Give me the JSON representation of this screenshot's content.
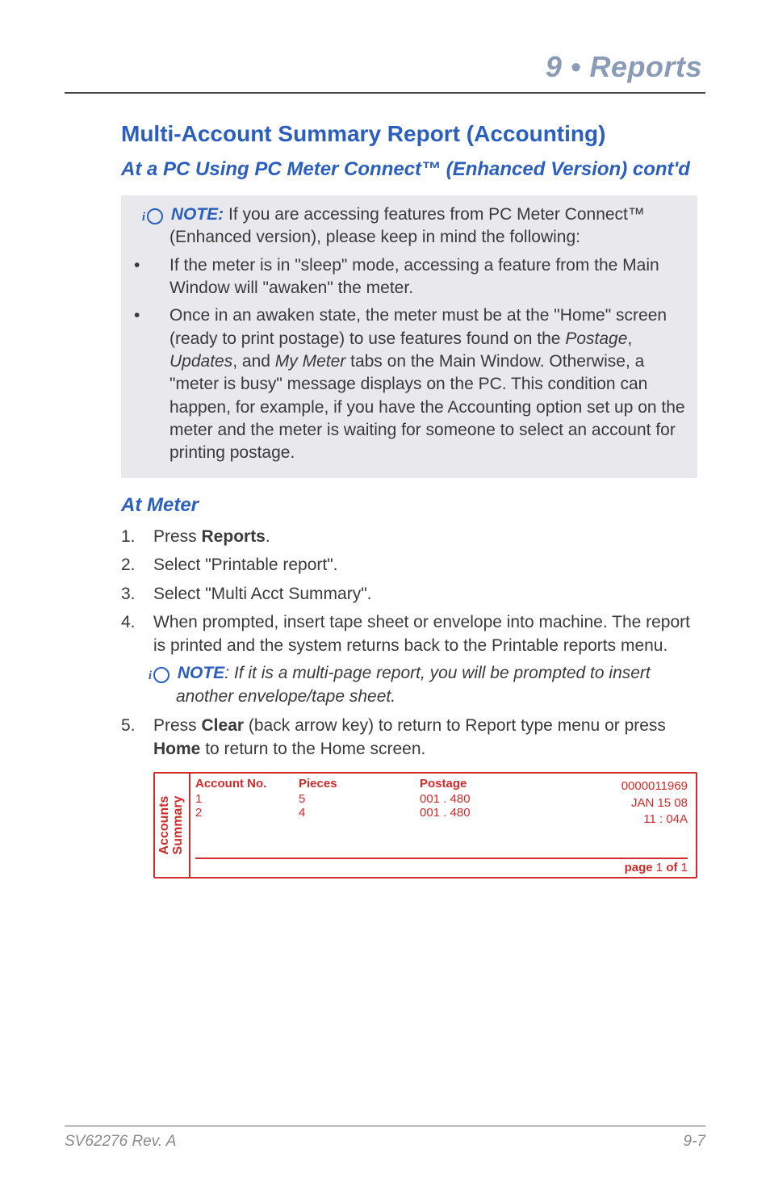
{
  "header": {
    "chapter": "9 • Reports"
  },
  "h1": "Multi-Account Summary Report (Accounting)",
  "h2": "At a PC Using PC Meter Connect™ (Enhanced Version) cont'd",
  "note": {
    "label": "NOTE:",
    "lead": " If you are accessing features from PC Meter Connect™ (Enhanced version), please keep in mind the following:",
    "bullets": [
      "If the meter is in \"sleep\" mode, accessing a feature from the Main Window will \"awaken\" the meter.",
      "Once in an awaken state, the meter must be at the \"Home\" screen (ready to print postage) to use features found on the Postage, Updates, and My Meter tabs on the Main Window. Otherwise, a \"meter is busy\" message displays on the PC. This condition can happen, for example, if you have the Accounting option set up on the meter and the meter is waiting for someone to select an account for printing postage."
    ],
    "b2_prefix": "Once in an awaken state, the meter must be at the \"Home\" screen (ready to print postage) to use features found on the ",
    "b2_i1": "Postage",
    "b2_m1": ", ",
    "b2_i2": "Updates",
    "b2_m2": ", and ",
    "b2_i3": "My Meter",
    "b2_suffix": " tabs on the Main Window. Otherwise, a \"meter is busy\" message displays on the PC. This condition can happen, for example, if you have the Accounting option set up on the meter and the meter is waiting for someone to select an account for printing postage."
  },
  "h2b": "At Meter",
  "steps": {
    "s1a": "Press ",
    "s1b": "Reports",
    "s1c": ".",
    "s2": "Select \"Printable report\".",
    "s3": "Select \"Multi Acct Summary\".",
    "s4": "When prompted, insert tape sheet or envelope into machine. The report is printed and the system returns back to the Printable reports menu.",
    "s4note_label": "NOTE",
    "s4note_text": ": If it is a multi-page report, you will be prompted to insert another envelope/tape sheet.",
    "s5a": "Press ",
    "s5b": "Clear",
    "s5c": " (back arrow key) to return to Report type menu or press ",
    "s5d": "Home",
    "s5e": " to return to the Home screen."
  },
  "report": {
    "side_l1": "Accounts",
    "side_l2": "Summary",
    "headers": {
      "acc": "Account No.",
      "pcs": "Pieces",
      "post": "Postage"
    },
    "rows": [
      {
        "acc": "1",
        "pcs": "5",
        "post": "001 . 480"
      },
      {
        "acc": "2",
        "pcs": "4",
        "post": "001 . 480"
      }
    ],
    "right": {
      "serial": "0000011969",
      "date": "JAN  15  08",
      "time": "11 : 04A"
    },
    "pager": {
      "a": "page",
      "b": "1",
      "c": "of",
      "d": "1"
    },
    "colors": {
      "border": "#d12a2a",
      "text": "#d12a2a"
    }
  },
  "footer": {
    "left": "SV62276 Rev. A",
    "right": "9-7"
  }
}
